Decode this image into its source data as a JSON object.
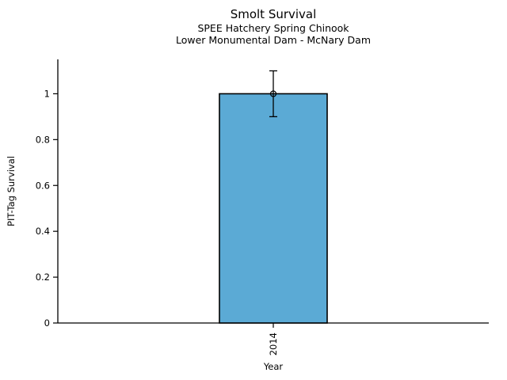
{
  "chart_data": {
    "type": "bar",
    "title": "Smolt Survival",
    "subtitle1": "SPEE Hatchery Spring Chinook",
    "subtitle2": "Lower Monumental Dam - McNary Dam",
    "categories": [
      "2014"
    ],
    "values": [
      1.0
    ],
    "error_bars": [
      0.1
    ],
    "xlabel": "Year",
    "ylabel": "PIT-Tag Survival",
    "ylim": [
      0,
      1.15
    ],
    "yticks": [
      0,
      0.2,
      0.4,
      0.6,
      0.8,
      1
    ],
    "ytick_labels": [
      "0",
      "0.2",
      "0.4",
      "0.6",
      "0.8",
      "1"
    ],
    "marker": "open-circle",
    "bar_color": "#5BAAD5",
    "bar_edge_color": "#000000",
    "axis_color": "#000000",
    "grid": false,
    "legend_position": "none"
  }
}
